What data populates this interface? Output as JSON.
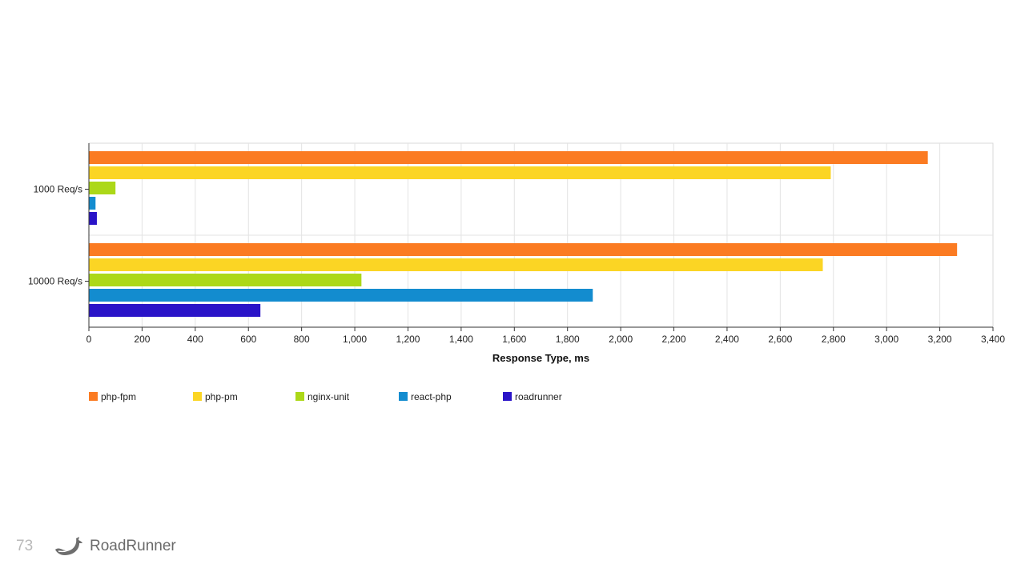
{
  "chart_data": {
    "type": "bar",
    "orientation": "horizontal",
    "categories": [
      "1000 Req/s",
      "10000 Req/s"
    ],
    "series": [
      {
        "name": "php-fpm",
        "color": "#fb7b22",
        "values": [
          3155,
          3265
        ]
      },
      {
        "name": "php-pm",
        "color": "#fbd524",
        "values": [
          2790,
          2760
        ]
      },
      {
        "name": "nginx-unit",
        "color": "#acd818",
        "values": [
          100,
          1025
        ]
      },
      {
        "name": "react-php",
        "color": "#138ccf",
        "values": [
          25,
          1895
        ]
      },
      {
        "name": "roadrunner",
        "color": "#2a14c8",
        "values": [
          30,
          645
        ]
      }
    ],
    "xlabel": "Response Type, ms",
    "ylabel": "",
    "xlim": [
      0,
      3400
    ],
    "xticks": [
      0,
      200,
      400,
      600,
      800,
      1000,
      1200,
      1400,
      1600,
      1800,
      2000,
      2200,
      2400,
      2600,
      2800,
      3000,
      3200,
      3400
    ],
    "xtick_labels": [
      "0",
      "200",
      "400",
      "600",
      "800",
      "1,000",
      "1,200",
      "1,400",
      "1,600",
      "1,800",
      "2,000",
      "2,200",
      "2,400",
      "2,600",
      "2,800",
      "3,000",
      "3,200",
      "3,400"
    ],
    "grid": true,
    "legend_position": "bottom-left"
  },
  "footer": {
    "page_number": "73",
    "brand_name": "RoadRunner",
    "logo_icon": "roadrunner-bird-icon"
  }
}
